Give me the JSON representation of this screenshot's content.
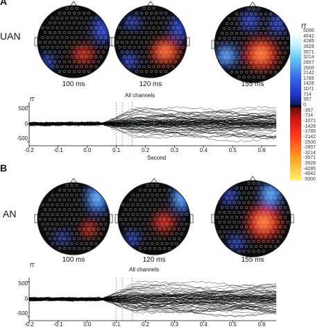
{
  "panels": [
    {
      "letter": "A",
      "condition": "UAN",
      "latencies": [
        "100 ms",
        "120 ms",
        "155 ms"
      ],
      "plot": {
        "ylabel": "fT",
        "title": "All channels",
        "xlabel": "Second",
        "yticks": [
          "500",
          "0",
          "-500"
        ],
        "xticks": [
          "-0.2",
          "-0.1",
          "0.0",
          "0.1",
          "0.2",
          "0.3",
          "0.4",
          "0.5",
          "0.6"
        ]
      }
    },
    {
      "letter": "B",
      "condition": "AN",
      "latencies": [
        "100 ms",
        "120 ms",
        "155 ms"
      ],
      "plot": {
        "ylabel": "fT",
        "title": "All channels",
        "xlabel": "",
        "yticks": [
          "500",
          "0",
          "-500"
        ],
        "xticks": [
          "-0.2",
          "-0.1",
          "0.0",
          "0.1",
          "0.2",
          "0.3",
          "0.4",
          "0.5",
          "0.6"
        ]
      }
    }
  ],
  "colorbar": {
    "unit": "fT",
    "labels": [
      "5000",
      "4642",
      "4285",
      "3928",
      "3571",
      "3214",
      "2857",
      "2500",
      "2142",
      "1785",
      "1428",
      "1071",
      "714",
      "357",
      "0",
      "-357",
      "-714",
      "-1071",
      "-1428",
      "-1785",
      "-2142",
      "-2500",
      "-2857",
      "-3214",
      "-3571",
      "-3928",
      "-4285",
      "-4642",
      "-5000"
    ]
  },
  "colors": {
    "positive_high": "#fff36a",
    "positive_mid": "#e31a1c",
    "negative_mid": "#2a46d8",
    "negative_high": "#bff3ff",
    "neutral": "#0a0a0a"
  }
}
